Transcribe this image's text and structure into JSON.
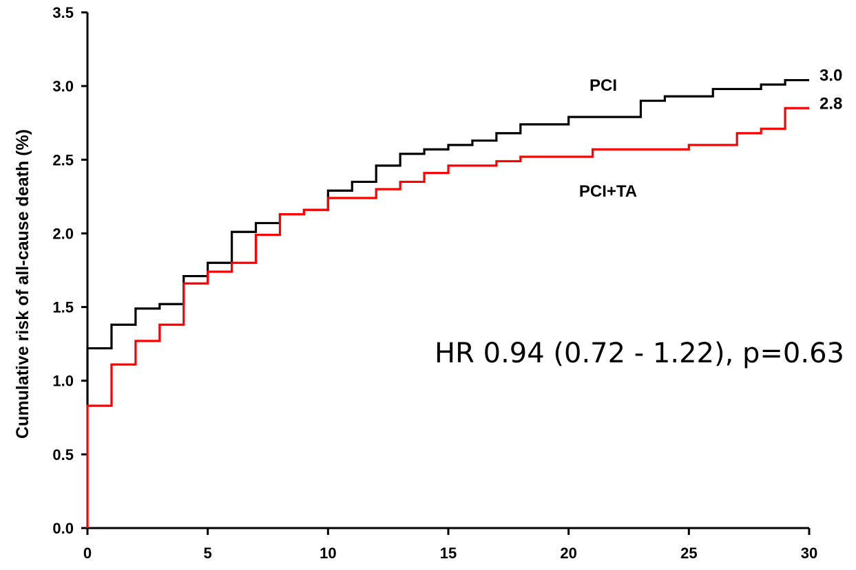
{
  "chart_data": {
    "type": "line",
    "step": true,
    "title": "",
    "xlabel": "",
    "ylabel": "Cumulative risk of all-cause death (%)",
    "xlim": [
      0,
      30
    ],
    "ylim": [
      0,
      3.5
    ],
    "xticks": [
      0,
      5,
      10,
      15,
      20,
      25,
      30
    ],
    "xtick_labels": [
      "0",
      "5",
      "10",
      "15",
      "20",
      "25",
      "30"
    ],
    "yticks": [
      0,
      0.5,
      1.0,
      1.5,
      2.0,
      2.5,
      3.0,
      3.5
    ],
    "ytick_labels": [
      "0.0",
      "0.5",
      "1.0",
      "1.5",
      "2.0",
      "2.5",
      "3.0",
      "3.5"
    ],
    "grid": false,
    "colors": {
      "PCI": "#000000",
      "PCI+TA": "#ff0000"
    },
    "series": [
      {
        "name": "PCI",
        "label": "PCI",
        "end_label": "3.0",
        "x": [
          0,
          0,
          1,
          2,
          3,
          4,
          5,
          6,
          7,
          8,
          9,
          10,
          11,
          12,
          13,
          14,
          15,
          16,
          17,
          18,
          20,
          23,
          24,
          26,
          28,
          29,
          30
        ],
        "y": [
          0.83,
          1.22,
          1.38,
          1.49,
          1.52,
          1.71,
          1.8,
          2.01,
          2.07,
          2.13,
          2.16,
          2.29,
          2.35,
          2.46,
          2.54,
          2.57,
          2.6,
          2.63,
          2.68,
          2.74,
          2.79,
          2.9,
          2.93,
          2.98,
          3.01,
          3.04,
          3.04
        ]
      },
      {
        "name": "PCI+TA",
        "label": "PCI+TA",
        "end_label": "2.8",
        "x": [
          0,
          0,
          1,
          2,
          3,
          4,
          5,
          6,
          7,
          8,
          9,
          10,
          12,
          13,
          14,
          15,
          17,
          18,
          21,
          25,
          27,
          28,
          29,
          30
        ],
        "y": [
          0,
          0.83,
          1.11,
          1.27,
          1.38,
          1.66,
          1.74,
          1.8,
          1.99,
          2.13,
          2.16,
          2.24,
          2.3,
          2.35,
          2.41,
          2.46,
          2.49,
          2.52,
          2.57,
          2.6,
          2.68,
          2.71,
          2.85,
          2.85
        ]
      }
    ],
    "annotation": "HR 0.94 (0.72 - 1.22), p=0.63"
  }
}
